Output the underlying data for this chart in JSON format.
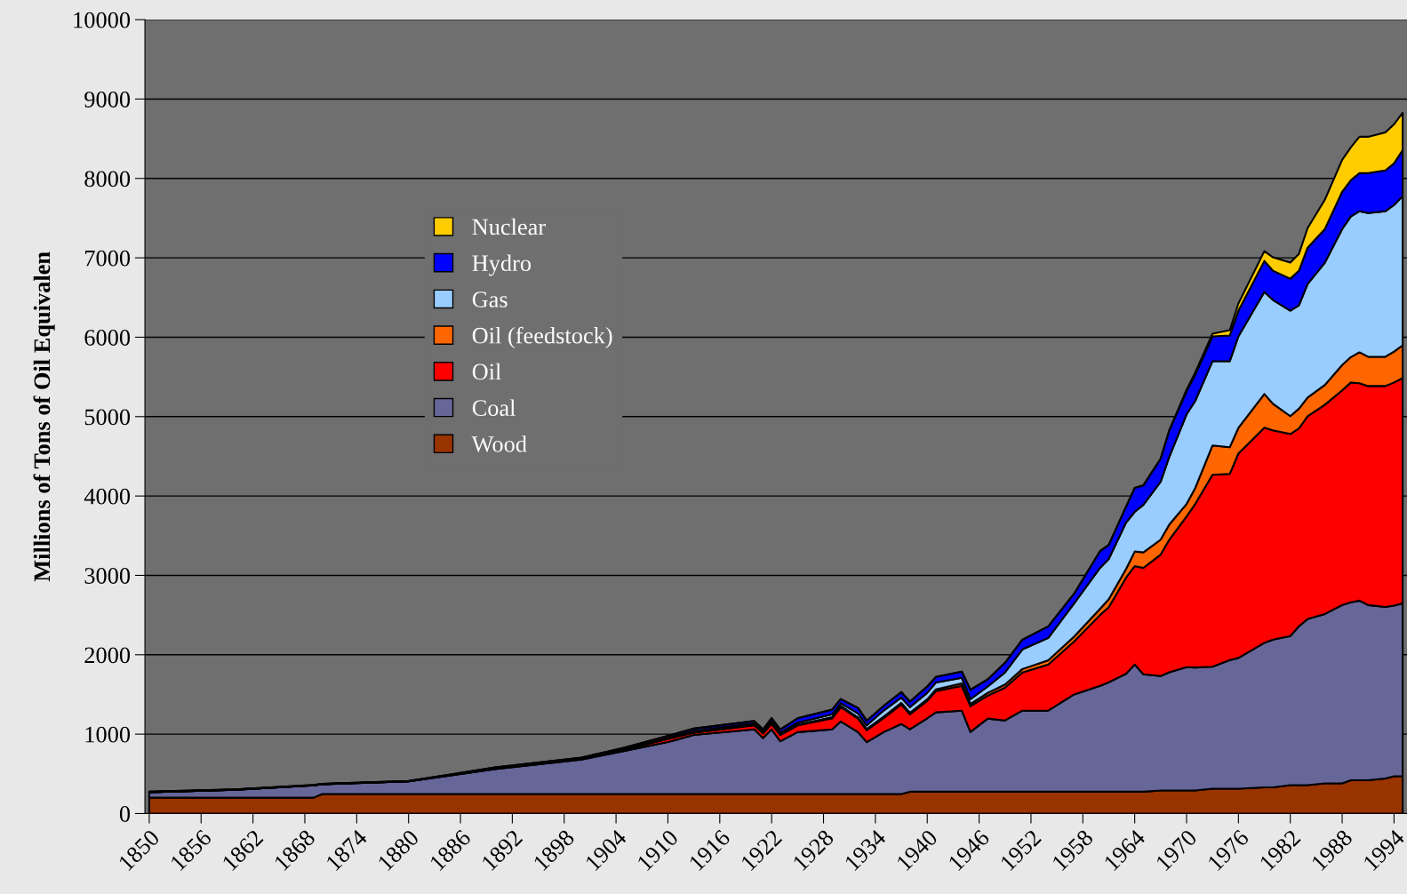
{
  "chart_data": {
    "type": "area",
    "stacked": true,
    "ylabel": "Millions of Tons of Oil Equivalen",
    "x": [
      1850,
      1860,
      1869,
      1870,
      1880,
      1890,
      1900,
      1905,
      1910,
      1913,
      1920,
      1921,
      1922,
      1923,
      1925,
      1929,
      1930,
      1932,
      1933,
      1935,
      1937,
      1938,
      1940,
      1941,
      1944,
      1945,
      1947,
      1949,
      1951,
      1954,
      1957,
      1960,
      1961,
      1963,
      1964,
      1965,
      1967,
      1968,
      1970,
      1971,
      1973,
      1975,
      1976,
      1979,
      1980,
      1982,
      1983,
      1984,
      1986,
      1988,
      1989,
      1990,
      1991,
      1993,
      1994,
      1995
    ],
    "series": [
      {
        "name": "Wood",
        "color": "#993300",
        "values": [
          200,
          200,
          200,
          245,
          245,
          245,
          245,
          245,
          245,
          245,
          245,
          245,
          245,
          245,
          245,
          245,
          245,
          245,
          245,
          245,
          245,
          275,
          275,
          275,
          275,
          275,
          275,
          275,
          275,
          275,
          275,
          275,
          275,
          275,
          275,
          275,
          290,
          290,
          290,
          290,
          313,
          313,
          313,
          330,
          330,
          358,
          358,
          358,
          380,
          380,
          419,
          419,
          419,
          441,
          469,
          469
        ]
      },
      {
        "name": "Coal",
        "color": "#666699",
        "values": [
          70,
          100,
          155,
          125,
          160,
          315,
          435,
          545,
          655,
          745,
          815,
          705,
          815,
          665,
          780,
          815,
          915,
          780,
          655,
          783,
          883,
          786,
          925,
          999,
          1021,
          753,
          921,
          898,
          1021,
          1021,
          1225,
          1334,
          1379,
          1485,
          1602,
          1479,
          1442,
          1490,
          1554,
          1550,
          1537,
          1620,
          1647,
          1820,
          1860,
          1877,
          2000,
          2092,
          2134,
          2246,
          2241,
          2263,
          2207,
          2162,
          2151,
          2179
        ]
      },
      {
        "name": "Oil",
        "color": "#ff0000",
        "values": [
          0,
          0,
          0,
          0,
          0,
          10,
          10,
          15,
          40,
          30,
          50,
          60,
          70,
          80,
          85,
          140,
          180,
          170,
          150,
          179,
          246,
          190,
          220,
          268,
          313,
          324,
          290,
          414,
          481,
          581,
          668,
          894,
          946,
          1212,
          1240,
          1341,
          1530,
          1670,
          1899,
          2060,
          2418,
          2346,
          2576,
          2710,
          2637,
          2547,
          2492,
          2556,
          2636,
          2704,
          2770,
          2738,
          2759,
          2782,
          2810,
          2838
        ]
      },
      {
        "name": "Oil (feedstock)",
        "color": "#ff6600",
        "values": [
          0,
          0,
          0,
          0,
          0,
          0,
          0,
          0,
          5,
          5,
          10,
          10,
          10,
          10,
          10,
          15,
          15,
          15,
          15,
          18,
          21,
          19,
          20,
          23,
          31,
          28,
          34,
          38,
          43,
          53,
          62,
          77,
          100,
          108,
          183,
          195,
          188,
          190,
          157,
          200,
          369,
          336,
          324,
          425,
          335,
          224,
          250,
          234,
          250,
          320,
          320,
          390,
          369,
          369,
          390,
          413
        ]
      },
      {
        "name": "Gas",
        "color": "#99ccff",
        "values": [
          0,
          0,
          0,
          0,
          0,
          2,
          3,
          5,
          10,
          15,
          15,
          15,
          20,
          20,
          25,
          35,
          35,
          50,
          45,
          75,
          65,
          70,
          80,
          85,
          69,
          61,
          80,
          152,
          247,
          282,
          418,
          515,
          507,
          585,
          500,
          598,
          729,
          852,
          1128,
          1096,
          1061,
          1083,
          1151,
          1285,
          1307,
          1329,
          1302,
          1430,
          1539,
          1713,
          1770,
          1777,
          1810,
          1833,
          1845,
          1878
        ]
      },
      {
        "name": "Hydro",
        "color": "#0000ff",
        "values": [
          5,
          5,
          5,
          5,
          5,
          8,
          12,
          20,
          25,
          30,
          30,
          25,
          40,
          40,
          55,
          60,
          53,
          70,
          60,
          60,
          70,
          70,
          80,
          70,
          79,
          119,
          90,
          122,
          123,
          146,
          123,
          212,
          178,
          201,
          301,
          246,
          290,
          335,
          290,
          334,
          313,
          324,
          324,
          391,
          369,
          402,
          436,
          458,
          424,
          469,
          458,
          480,
          503,
          514,
          525,
          581
        ]
      },
      {
        "name": "Nuclear",
        "color": "#ffcc00",
        "values": [
          0,
          0,
          0,
          0,
          0,
          0,
          0,
          0,
          0,
          0,
          0,
          0,
          0,
          0,
          0,
          0,
          0,
          0,
          0,
          0,
          0,
          0,
          0,
          0,
          0,
          0,
          0,
          0,
          0,
          0,
          0,
          0,
          0,
          0,
          0,
          0,
          0,
          0,
          22,
          25,
          34,
          67,
          90,
          123,
          168,
          202,
          212,
          246,
          369,
          403,
          413,
          458,
          458,
          480,
          492,
          469
        ]
      }
    ],
    "xlim": [
      1849.5,
      1995.5
    ],
    "xticks": [
      1850,
      1856,
      1862,
      1868,
      1874,
      1880,
      1886,
      1892,
      1898,
      1904,
      1910,
      1916,
      1922,
      1928,
      1934,
      1940,
      1946,
      1952,
      1958,
      1964,
      1970,
      1976,
      1982,
      1988,
      1994
    ],
    "ylim": [
      0,
      10000
    ],
    "yticks": [
      0,
      1000,
      2000,
      3000,
      4000,
      5000,
      6000,
      7000,
      8000,
      9000,
      10000
    ],
    "grid": "y",
    "legend": "center"
  }
}
